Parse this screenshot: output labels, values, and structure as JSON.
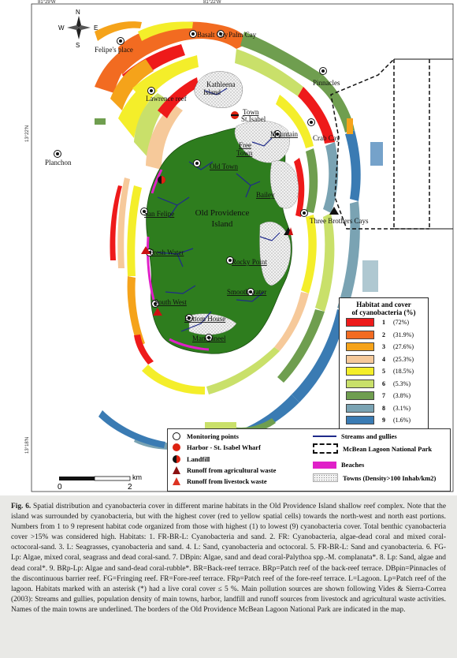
{
  "map": {
    "coords": {
      "top_left": "81°29'W",
      "top_mid": "81°22'W",
      "left_mid": "13°22'N",
      "left_bottom": "13°18'N"
    },
    "compass": {
      "n": "N",
      "s": "S",
      "e": "E",
      "w": "W"
    },
    "island_name": [
      "Old Providence",
      "Island"
    ],
    "places": {
      "basalt_cay": "Basalt Cay",
      "palm_cay": "Palm Cay",
      "felipes_place": "Felipe's place",
      "pinnacles": "Pinnacles",
      "kathleena": [
        "Kathleena",
        "Island"
      ],
      "lawrence_reef": "Lawrence reef",
      "town": "Town",
      "st_isabel": "St.Isabel",
      "mountain": "Mountain",
      "crab_cay": "Crab Cay",
      "free_town": [
        "Free",
        "Town"
      ],
      "planchon": "Planchon",
      "old_town": "Old Town",
      "bailey": "Bailey",
      "san_felipe": "San Felipe",
      "three_brothers": "Three Brothers Cays",
      "fresh_water": "Fresh Water",
      "rocky_point": "Rocky Point",
      "smooth_water": "Smooth water",
      "south_west": "South West",
      "bottom_house": "Bottom House",
      "manchineel": "Manchineel"
    },
    "scale": {
      "zero": "0",
      "two": "2",
      "unit": "km"
    }
  },
  "habitat_legend": {
    "title": [
      "Habitat and cover",
      "of cyanobacteria (%)"
    ],
    "items": [
      {
        "num": "1",
        "pct": "(72%)",
        "color": "#ee1a1a"
      },
      {
        "num": "2",
        "pct": "(31.9%)",
        "color": "#f26b21"
      },
      {
        "num": "3",
        "pct": "(27.6%)",
        "color": "#f5a31a"
      },
      {
        "num": "4",
        "pct": "(25.3%)",
        "color": "#f6c99a"
      },
      {
        "num": "5",
        "pct": "(18.5%)",
        "color": "#f4ee2a"
      },
      {
        "num": "6",
        "pct": "(5.3%)",
        "color": "#c9e06a"
      },
      {
        "num": "7",
        "pct": "(3.8%)",
        "color": "#6f9e4f"
      },
      {
        "num": "8",
        "pct": "(3.1%)",
        "color": "#7aa3b3"
      },
      {
        "num": "9",
        "pct": "(1.6%)",
        "color": "#3a7bb3"
      }
    ]
  },
  "symbol_legend": {
    "monitoring": "Monitoring points",
    "harbor": "Harbor -  St. Isabel Wharf",
    "landfill": "Landfill",
    "runoff_agri": "Runoff from agricultural waste",
    "runoff_live": "Runoff from livestock waste",
    "streams": "Streams and gullies",
    "park": "McBean Lagoon National Park",
    "beaches": "Beaches",
    "towns": "Towns (Density>100 Inhab/km2)"
  },
  "caption": {
    "label": "Fig. 6.",
    "text": " Spatial distribution and cyanobacteria cover in different marine habitats in the Old Providence Island shallow reef complex. Note that the island was surrounded by cyanobacteria, but with the highest cover (red to yellow spatial cells) towards the north-west and north east portions. Numbers from 1 to 9 represent habitat code organized from those with highest (1) to lowest (9) cyanobacteria cover. Total benthic cyanobacteria cover >15% was considered high. Habitats: 1. FR-BR-L: Cyanobacteria and sand. 2. FR: Cyanobacteria, algae-dead coral and mixed coral-octocoral-sand. 3. L: Seagrasses, cyanobacteria and sand. 4. L: Sand, cyanobacteria and octocoral. 5. FR-BR-L: Sand and cyanobacteria. 6. FG-Lp: Algae, mixed coral, seagrass and dead coral-sand. 7. DBpin: Algae, sand and dead coral-Palythoa spp.-M. complanata*. 8. Lp: Sand, algae and dead coral*. 9. BRp-Lp: Algae and sand-dead coral-rubble*. BR=Back-reef terrace. BRp=Patch reef of the back-reef terrace. DBpin=Pinnacles of the discontinuous barrier reef. FG=Fringing reef. FR=Fore-reef terrace. FRp=Patch reef of the fore-reef terrace. L=Lagoon. Lp=Patch reef of the lagoon. Habitats marked with an asterisk (*) had a live coral cover ≤ 5 %. Main pollution sources are shown following Vides & Sierra-Correa (2003): Streams and gullies, population density of main towns, harbor, landfill and runoff sources from livestock and agricultural waste activities. Names of the main towns are underlined. The borders of the Old Providence McBean Lagoon National Park are indicated in the map."
  }
}
